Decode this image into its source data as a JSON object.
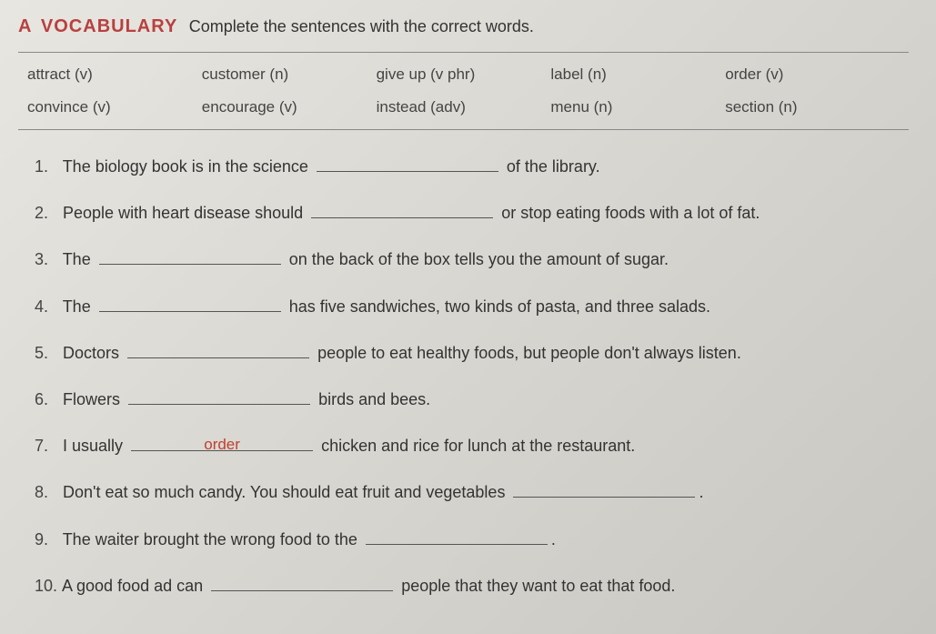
{
  "header": {
    "letter": "A",
    "title": "VOCABULARY",
    "instruction": "Complete the sentences with the correct words."
  },
  "wordbank": {
    "row1": {
      "c1": "attract (v)",
      "c2": "customer (n)",
      "c3": "give up (v phr)",
      "c4": "label (n)",
      "c5": "order (v)"
    },
    "row2": {
      "c1": "convince (v)",
      "c2": "encourage (v)",
      "c3": "instead (adv)",
      "c4": "menu (n)",
      "c5": "section (n)"
    }
  },
  "questions": {
    "q1": {
      "num": "1.",
      "pre": "The biology book is in the science",
      "ans": "",
      "post": "of the library."
    },
    "q2": {
      "num": "2.",
      "pre": "People with heart disease should",
      "ans": "",
      "post": "or stop eating foods with a lot of fat."
    },
    "q3": {
      "num": "3.",
      "pre": "The",
      "ans": "",
      "post": "on the back of the box tells you the amount of sugar."
    },
    "q4": {
      "num": "4.",
      "pre": "The",
      "ans": "",
      "post": "has five sandwiches, two kinds of pasta, and three salads."
    },
    "q5": {
      "num": "5.",
      "pre": "Doctors",
      "ans": "",
      "post": "people to eat healthy foods, but people don't always listen."
    },
    "q6": {
      "num": "6.",
      "pre": "Flowers",
      "ans": "",
      "post": "birds and bees."
    },
    "q7": {
      "num": "7.",
      "pre": "I usually",
      "ans": "order",
      "post": "chicken and rice for lunch at the restaurant."
    },
    "q8": {
      "num": "8.",
      "pre": "Don't eat so much candy. You should eat fruit and vegetables",
      "ans": "",
      "post": "."
    },
    "q9": {
      "num": "9.",
      "pre": "The waiter brought the wrong food to the",
      "ans": "",
      "post": "."
    },
    "q10": {
      "num": "10.",
      "pre": "A good food ad can",
      "ans": "",
      "post": "people that they want to eat that food."
    }
  }
}
